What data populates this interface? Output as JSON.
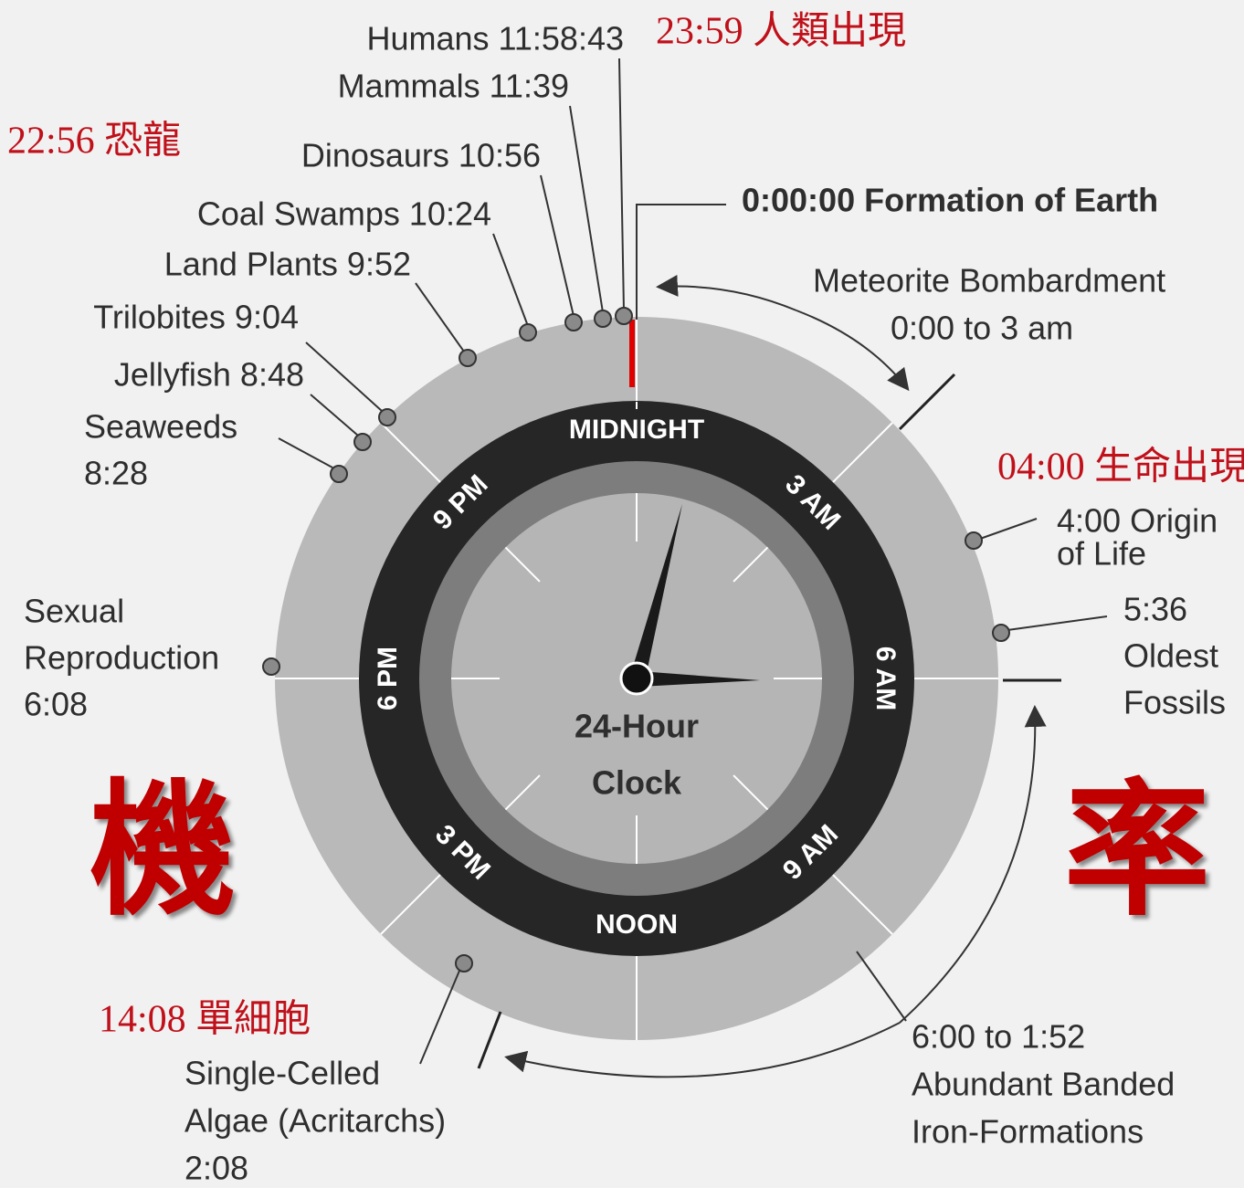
{
  "title": [
    "24-Hour",
    "Clock"
  ],
  "ring_labels": [
    "MIDNIGHT",
    "3 AM",
    "6 AM",
    "9 AM",
    "NOON",
    "3 PM",
    "6 PM",
    "9 PM"
  ],
  "events": [
    {
      "lines": [
        "Humans 11:58:43"
      ]
    },
    {
      "lines": [
        "Mammals 11:39"
      ]
    },
    {
      "lines": [
        "Dinosaurs 10:56"
      ]
    },
    {
      "lines": [
        "Coal Swamps 10:24"
      ]
    },
    {
      "lines": [
        "Land Plants 9:52"
      ]
    },
    {
      "lines": [
        "Trilobites 9:04"
      ]
    },
    {
      "lines": [
        "Jellyfish 8:48"
      ]
    },
    {
      "lines": [
        "Seaweeds",
        "8:28"
      ]
    },
    {
      "lines": [
        "Sexual",
        "Reproduction",
        "6:08"
      ]
    },
    {
      "lines": [
        "0:00:00 Formation of Earth"
      ]
    },
    {
      "lines": [
        "Meteorite Bombardment",
        "0:00 to 3 am"
      ]
    },
    {
      "lines": [
        "4:00 Origin",
        "of Life"
      ]
    },
    {
      "lines": [
        "5:36",
        "Oldest",
        "Fossils"
      ]
    },
    {
      "lines": [
        "6:00 to 1:52",
        "Abundant Banded",
        "Iron-Formations"
      ]
    },
    {
      "lines": [
        "Single-Celled",
        "Algae (Acritarchs)",
        "2:08"
      ]
    }
  ],
  "annotations": [
    "23:59 人類出現",
    "22:56 恐龍",
    "04:00 生命出現",
    "14:08 單細胞"
  ],
  "big_characters": [
    "機",
    "率"
  ]
}
